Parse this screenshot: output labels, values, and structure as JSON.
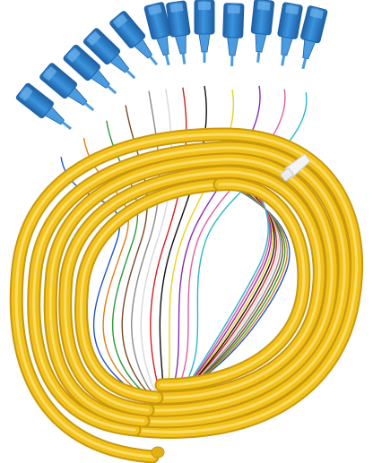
{
  "image": {
    "subject": "fiber-optic-pigtail-bundle",
    "background_color": "#ffffff",
    "connector_count": 12,
    "connector_type": "SC",
    "colors": {
      "jacket": "#f2c21b",
      "jacket_dark": "#c8980e",
      "jacket_light": "#fbe27a",
      "connector_body": "#2f86d2",
      "connector_dark": "#1d5fa3",
      "connector_light": "#6fb4ee",
      "boot": "#4b9be0",
      "cable_tie": "#f4f4f4"
    },
    "fiber_colors": [
      "#1e56c8",
      "#e07c18",
      "#2a9a3a",
      "#7a4a22",
      "#8a8a8a",
      "#f5f5f5",
      "#d42020",
      "#111111",
      "#e8d21a",
      "#8a2bb0",
      "#e0609a",
      "#29b8c8"
    ]
  }
}
